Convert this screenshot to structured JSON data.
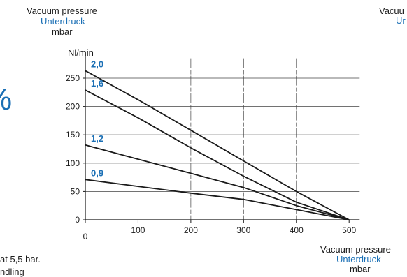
{
  "header": {
    "left": {
      "line1": "Vacuum pressure",
      "line2": "Unterdruck",
      "line3": "mbar"
    },
    "right_cut": {
      "line1": "Vacuu",
      "line2": "Ur"
    }
  },
  "left_edge_glyph": "%",
  "footer": {
    "text1": "at 5,5 bar.",
    "text2": "ndling"
  },
  "colors": {
    "axis": "#1a1a1a",
    "series": "#1a1a1a",
    "label": "#1a6fb5",
    "grid": "#444444"
  },
  "chart_data": {
    "type": "line",
    "ylabel": "Nl/min",
    "xlabel": {
      "line1": "Vacuum pressure",
      "line2": "Unterdruck",
      "line3": "mbar"
    },
    "xlim": [
      0,
      520
    ],
    "ylim": [
      0,
      280
    ],
    "x_ticks": [
      "0",
      "100",
      "200",
      "300",
      "400",
      "500"
    ],
    "y_ticks": [
      "0",
      "50",
      "100",
      "150",
      "200",
      "250"
    ],
    "grid": true,
    "series": [
      {
        "name": "2,0",
        "x": [
          0,
          100,
          200,
          300,
          400,
          500
        ],
        "y": [
          263,
          212,
          158,
          104,
          50,
          0
        ]
      },
      {
        "name": "1,6",
        "x": [
          0,
          100,
          200,
          300,
          400,
          500
        ],
        "y": [
          229,
          180,
          127,
          77,
          31,
          0
        ]
      },
      {
        "name": "1,2",
        "x": [
          0,
          100,
          200,
          300,
          400,
          500
        ],
        "y": [
          132,
          107,
          82,
          57,
          25,
          0
        ]
      },
      {
        "name": "0,9",
        "x": [
          0,
          100,
          200,
          300,
          400,
          500
        ],
        "y": [
          71,
          59,
          47,
          36,
          18,
          0
        ]
      }
    ]
  }
}
